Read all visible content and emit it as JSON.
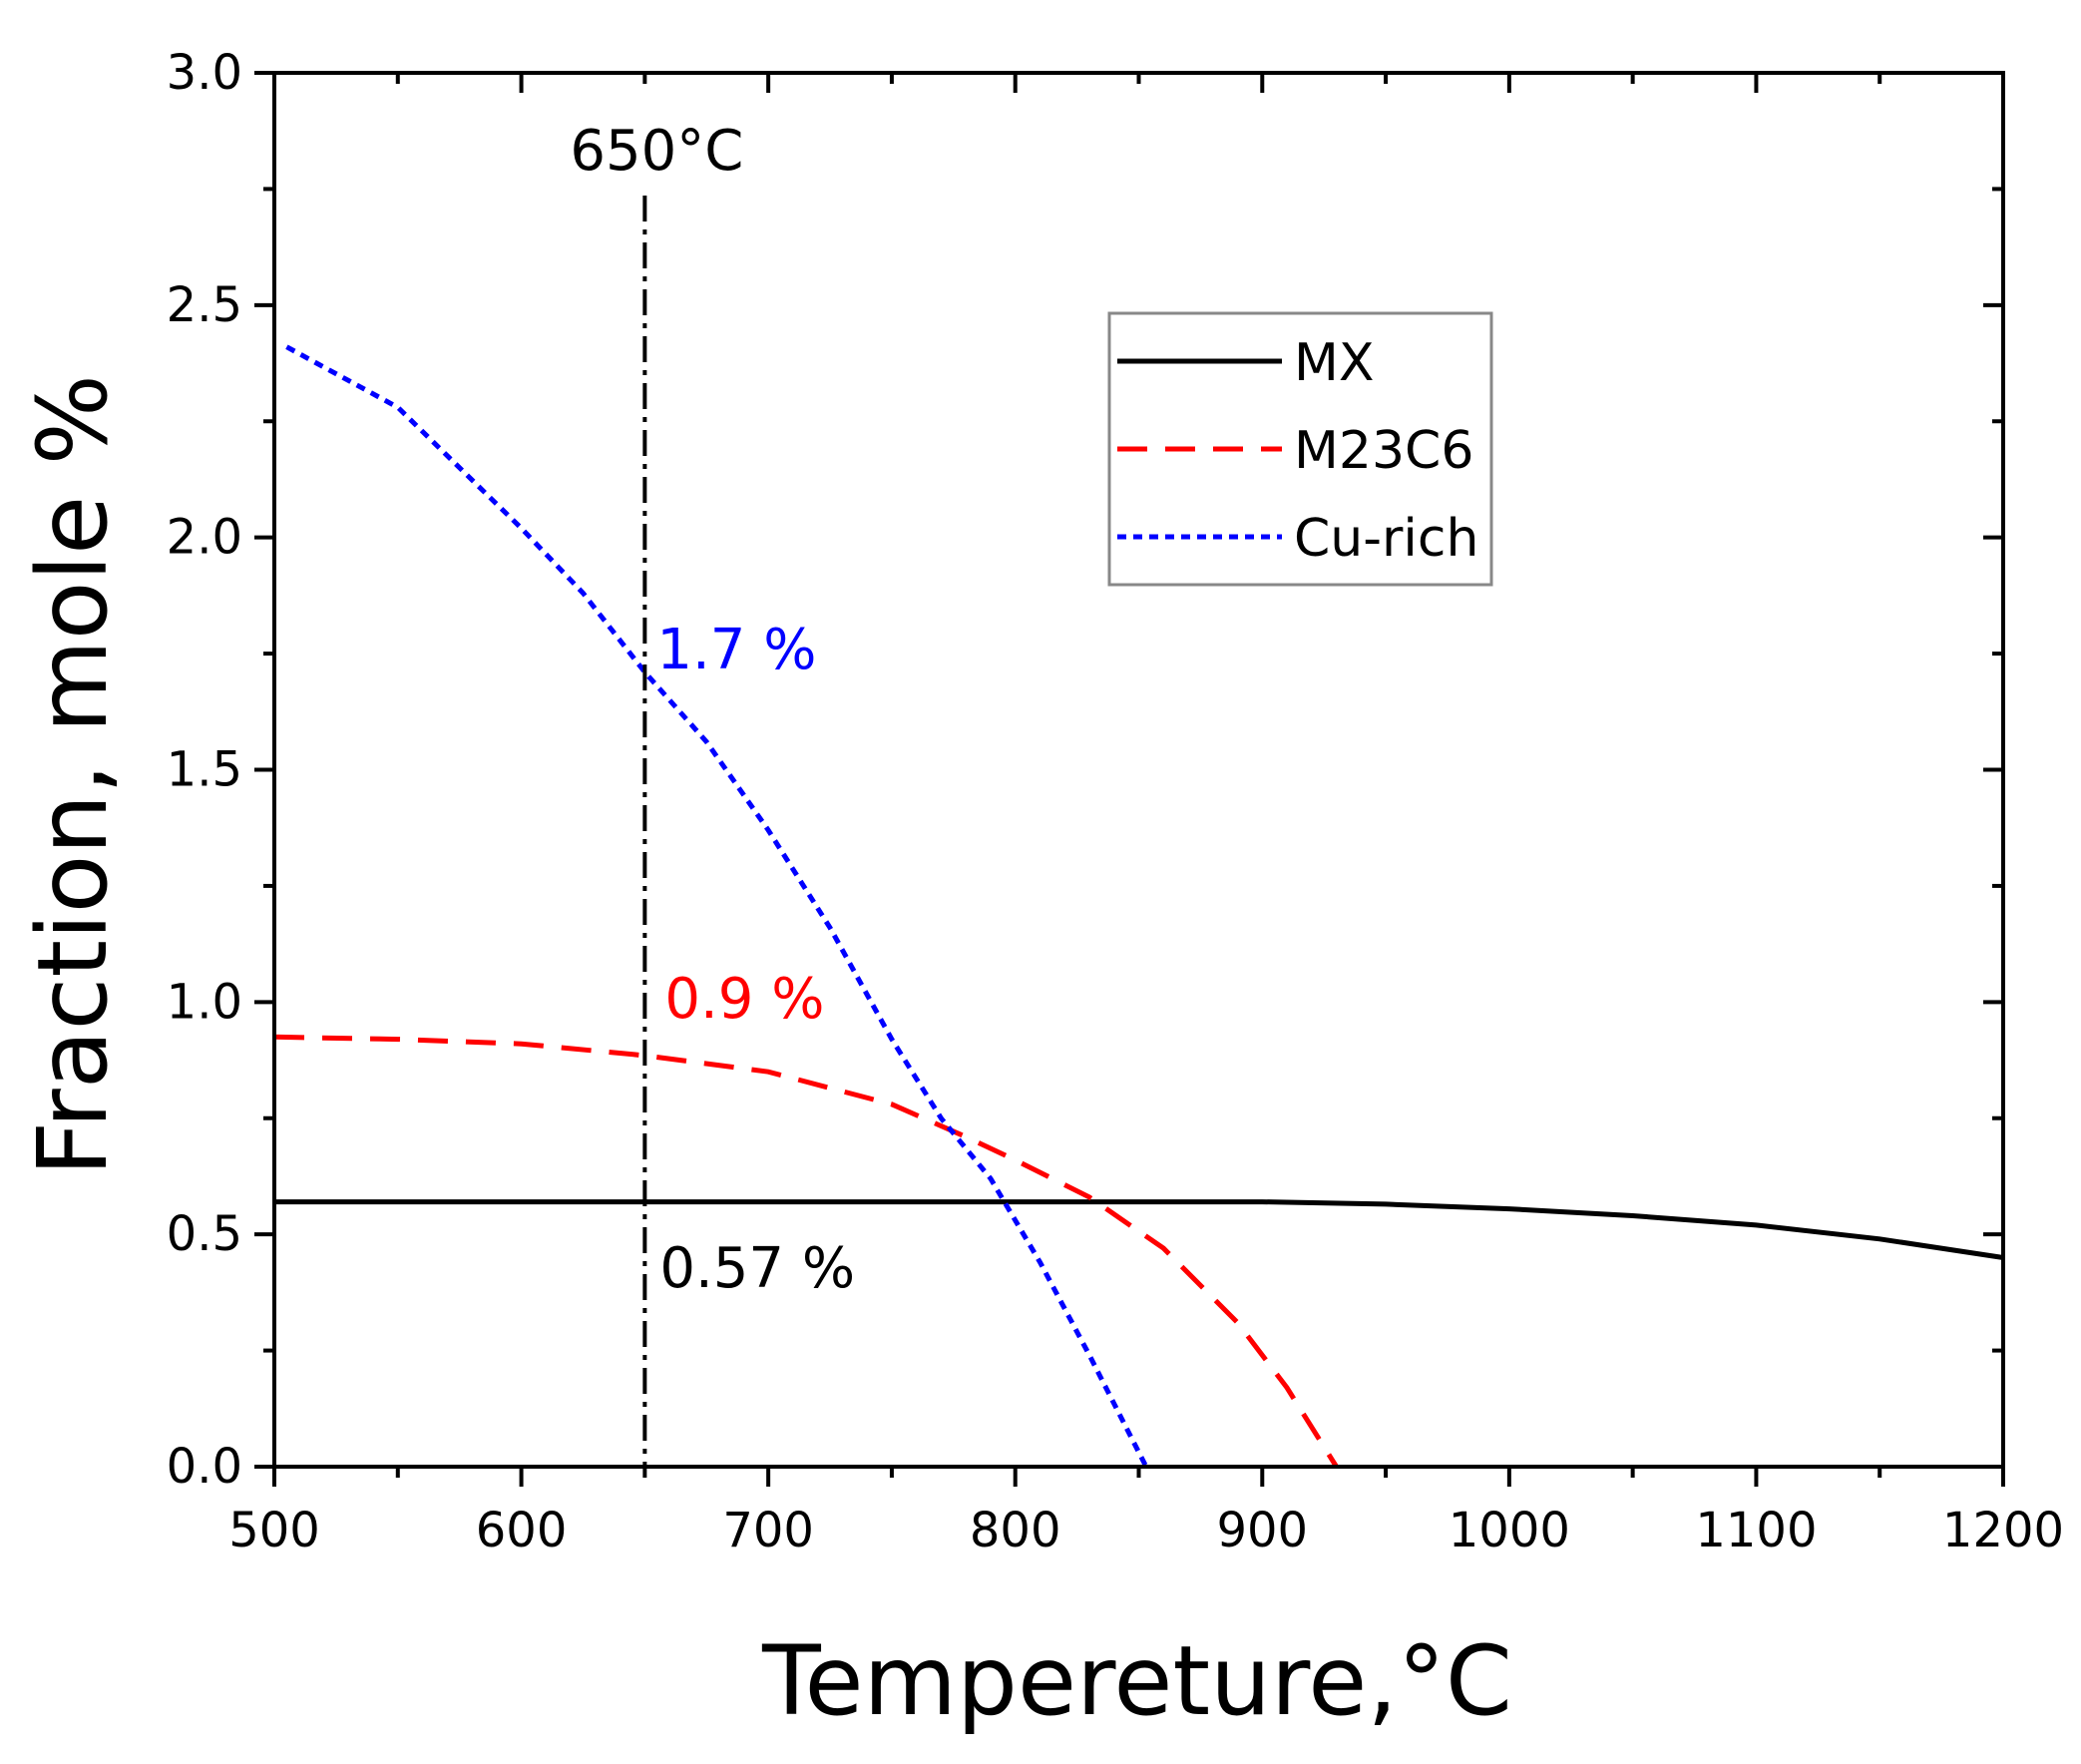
{
  "chart_data": {
    "type": "line",
    "title": "",
    "xlabel": "Tempereture,°C",
    "ylabel": "Fraction, mole %",
    "xlim": [
      500,
      1200
    ],
    "ylim": [
      0.0,
      3.0
    ],
    "xticks": [
      500,
      600,
      700,
      800,
      900,
      1000,
      1100,
      1200
    ],
    "xtick_labels": [
      "500",
      "600",
      "700",
      "800",
      "900",
      "1000",
      "1100",
      "1200"
    ],
    "yticks": [
      0.0,
      0.5,
      1.0,
      1.5,
      2.0,
      2.5,
      3.0
    ],
    "ytick_labels": [
      "0.0",
      "0.5",
      "1.0",
      "1.5",
      "2.0",
      "2.5",
      "3.0"
    ],
    "grid": false,
    "legend_position": "top-right",
    "series": [
      {
        "name": "MX",
        "color": "#000000",
        "style": "solid",
        "x": [
          500,
          600,
          650,
          700,
          800,
          900,
          950,
          1000,
          1050,
          1100,
          1150,
          1200
        ],
        "y": [
          0.57,
          0.57,
          0.57,
          0.57,
          0.57,
          0.57,
          0.565,
          0.555,
          0.54,
          0.52,
          0.49,
          0.45
        ]
      },
      {
        "name": "M23C6",
        "color": "#ff0000",
        "style": "dashed",
        "x": [
          500,
          550,
          600,
          650,
          700,
          750,
          780,
          800,
          830,
          860,
          890,
          910,
          930
        ],
        "y": [
          0.925,
          0.92,
          0.91,
          0.885,
          0.85,
          0.78,
          0.71,
          0.66,
          0.58,
          0.47,
          0.31,
          0.17,
          0.0
        ]
      },
      {
        "name": "Cu-rich",
        "color": "#0000ff",
        "style": "dotted",
        "x": [
          505,
          550,
          600,
          625,
          650,
          675,
          700,
          725,
          750,
          770,
          790,
          810,
          830,
          853
        ],
        "y": [
          2.41,
          2.28,
          2.02,
          1.88,
          1.71,
          1.56,
          1.37,
          1.16,
          0.92,
          0.75,
          0.62,
          0.44,
          0.24,
          0.0
        ]
      }
    ],
    "annotations": {
      "vline_label": "650°C",
      "vline_x": 650,
      "labels": [
        {
          "text": "1.7 %",
          "x": 650,
          "y": 1.7,
          "color": "#0000ff"
        },
        {
          "text": "0.9 %",
          "x": 650,
          "y": 0.9,
          "color": "#ff0000"
        },
        {
          "text": "0.57 %",
          "x": 650,
          "y": 0.57,
          "color": "#000000"
        }
      ]
    }
  }
}
